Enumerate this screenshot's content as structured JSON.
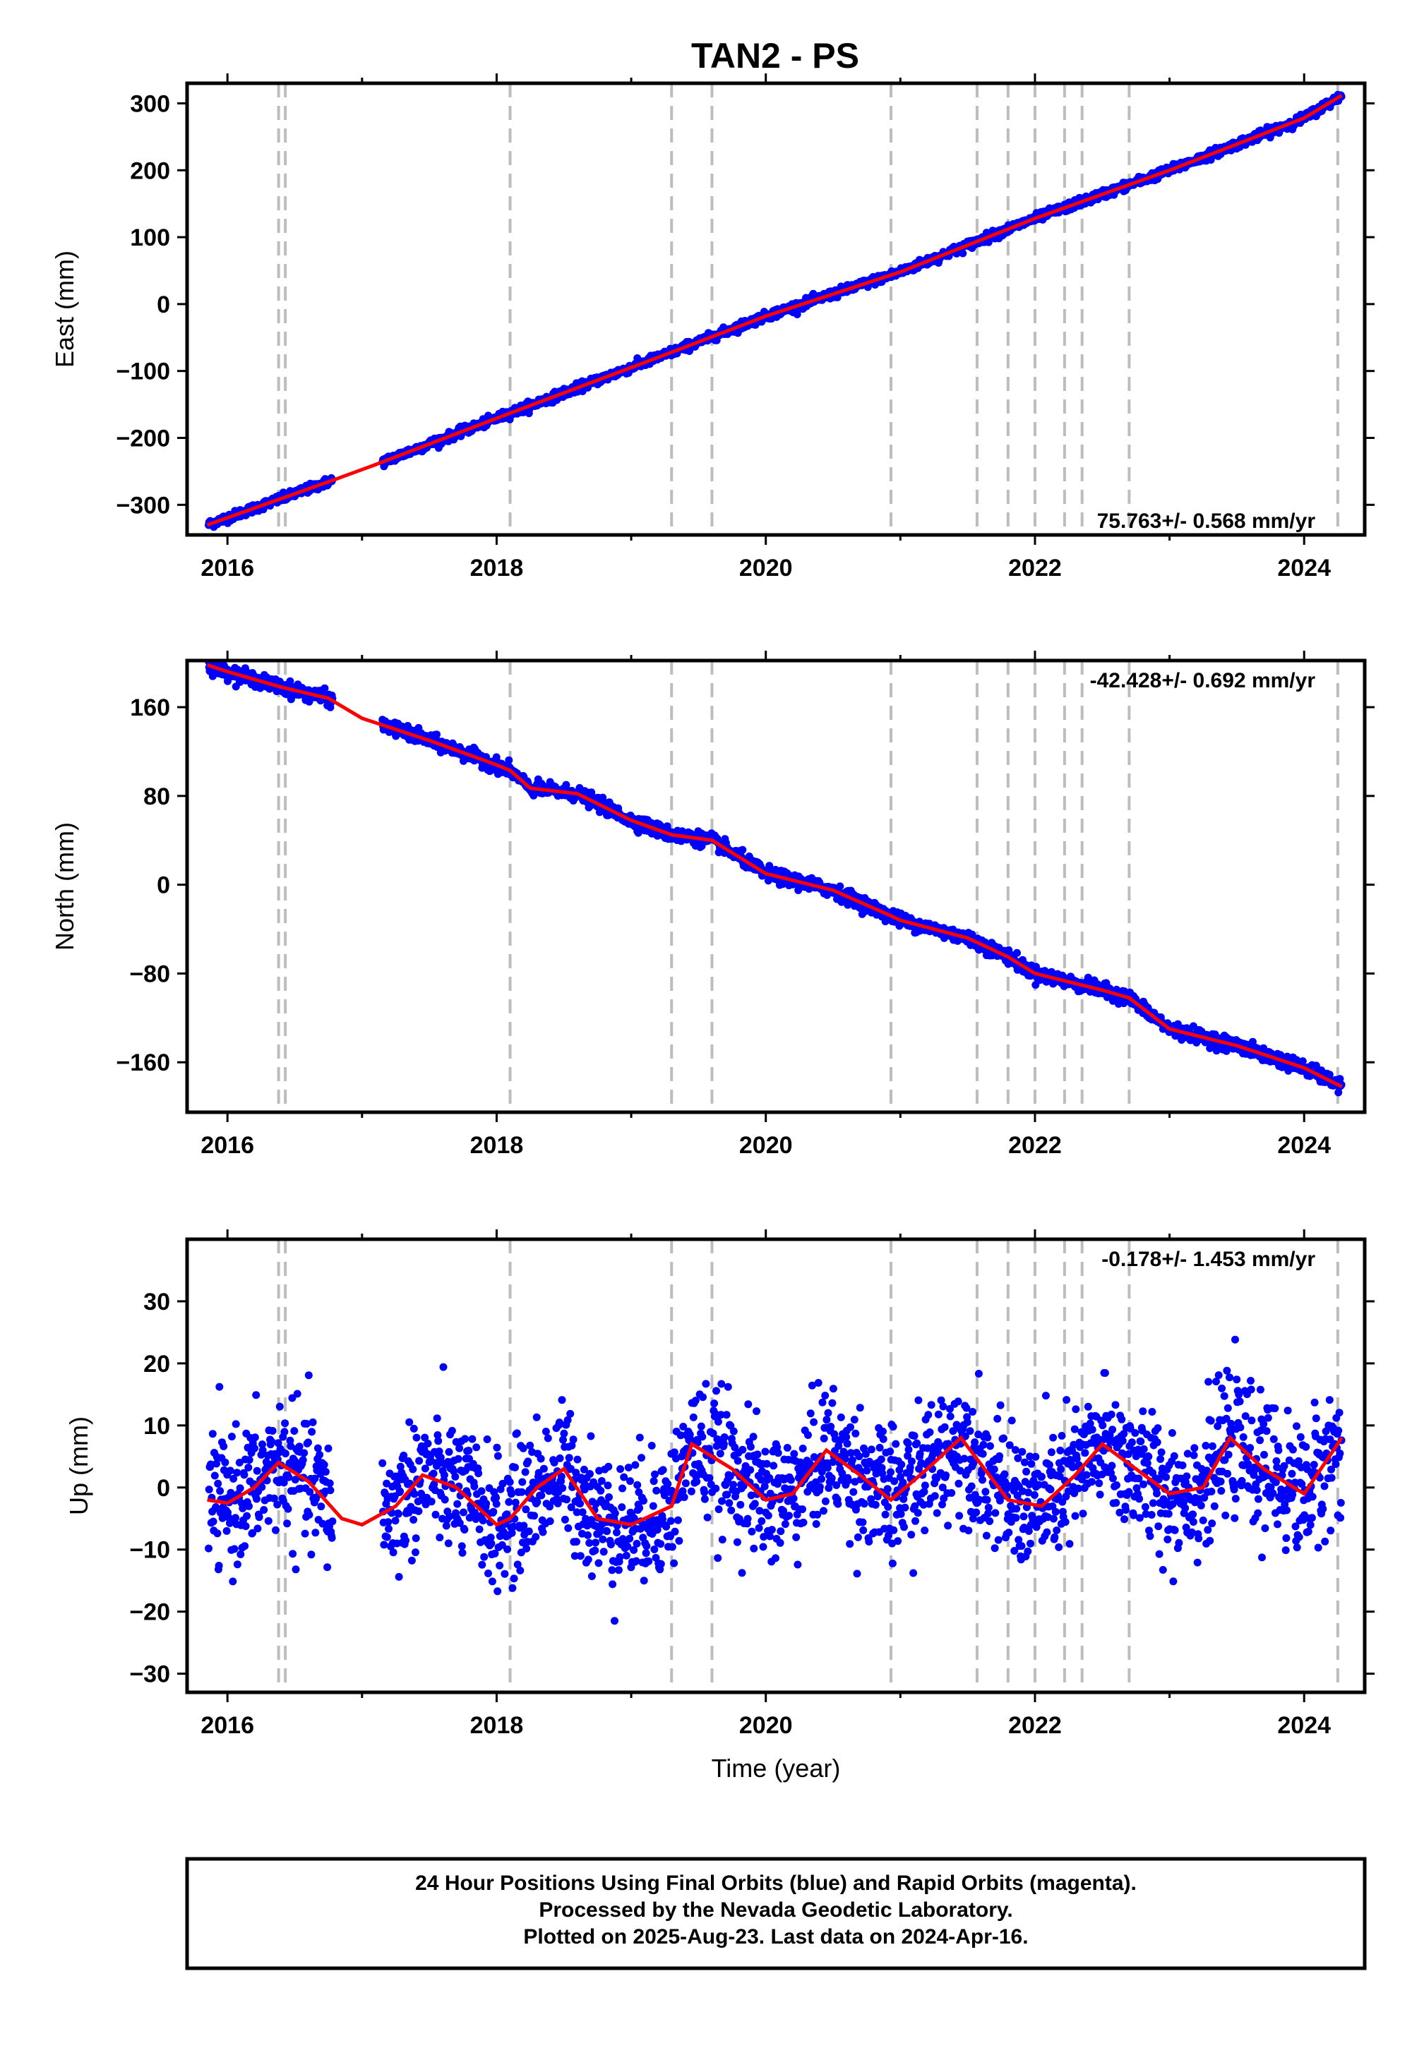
{
  "title": "TAN2 - PS",
  "chart_data": [
    {
      "type": "scatter",
      "panel": "east",
      "ylabel": "East (mm)",
      "xlabel": "",
      "xlim": [
        2015.7,
        2024.45
      ],
      "ylim": [
        -345,
        330
      ],
      "yticks": [
        300,
        200,
        100,
        0,
        -100,
        -200,
        -300
      ],
      "ytick_labels": [
        "300",
        "200",
        "100",
        "0",
        "−100",
        "−200",
        "−300"
      ],
      "xticks": [
        2016,
        2018,
        2020,
        2022,
        2024
      ],
      "xtick_labels": [
        "2016",
        "2018",
        "2020",
        "2022",
        "2024"
      ],
      "rate_label": "75.763+/- 0.568 mm/yr",
      "series": [
        {
          "color": "#0000ff",
          "kind": "points",
          "trend": {
            "t0": 2015.85,
            "y0": -330,
            "t1": 2024.28,
            "y1": 312
          }
        },
        {
          "color": "#ff0000",
          "kind": "model",
          "x": [
            2015.85,
            2016.8,
            2017.1,
            2018.1,
            2019.3,
            2020.0,
            2021.0,
            2022.0,
            2023.0,
            2024.0,
            2024.28
          ],
          "values": [
            -330,
            -262,
            -240,
            -163,
            -72,
            -18,
            48,
            128,
            200,
            278,
            312
          ]
        }
      ]
    },
    {
      "type": "scatter",
      "panel": "north",
      "ylabel": "North (mm)",
      "xlabel": "",
      "xlim": [
        2015.7,
        2024.45
      ],
      "ylim": [
        -205,
        202
      ],
      "yticks": [
        160,
        80,
        0,
        -80,
        -160
      ],
      "ytick_labels": [
        "160",
        "80",
        "0",
        "−80",
        "−160"
      ],
      "xticks": [
        2016,
        2018,
        2020,
        2022,
        2024
      ],
      "xtick_labels": [
        "2016",
        "2018",
        "2020",
        "2022",
        "2024"
      ],
      "rate_label": "-42.428+/- 0.692 mm/yr",
      "series": [
        {
          "color": "#0000ff",
          "kind": "points",
          "trend": {
            "t0": 2015.85,
            "y0": 198,
            "t1": 2024.28,
            "y1": -178
          }
        },
        {
          "color": "#ff0000",
          "kind": "model",
          "x": [
            2015.85,
            2016.0,
            2016.4,
            2016.75,
            2017.0,
            2017.5,
            2018.0,
            2018.1,
            2018.25,
            2018.6,
            2019.0,
            2019.3,
            2019.6,
            2020.0,
            2020.5,
            2020.93,
            2021.0,
            2021.5,
            2021.8,
            2022.0,
            2022.5,
            2022.7,
            2023.0,
            2023.5,
            2024.0,
            2024.28
          ],
          "values": [
            198,
            192,
            178,
            168,
            150,
            130,
            108,
            103,
            87,
            82,
            58,
            45,
            40,
            10,
            -5,
            -28,
            -32,
            -48,
            -65,
            -80,
            -95,
            -102,
            -130,
            -145,
            -165,
            -182
          ]
        }
      ]
    },
    {
      "type": "scatter",
      "panel": "up",
      "ylabel": "Up (mm)",
      "xlabel": "Time (year)",
      "xlim": [
        2015.7,
        2024.45
      ],
      "ylim": [
        -33,
        40
      ],
      "yticks": [
        30,
        20,
        10,
        0,
        -10,
        -20,
        -30
      ],
      "ytick_labels": [
        "30",
        "20",
        "10",
        "0",
        "−10",
        "−20",
        "−30"
      ],
      "xticks": [
        2016,
        2018,
        2020,
        2022,
        2024
      ],
      "xtick_labels": [
        "2016",
        "2018",
        "2020",
        "2022",
        "2024"
      ],
      "rate_label": "-0.178+/- 1.453 mm/yr",
      "series": [
        {
          "color": "#0000ff",
          "kind": "points",
          "trend": {
            "t0": 2015.85,
            "y0": 0,
            "t1": 2024.28,
            "y1": 0
          }
        },
        {
          "color": "#ff0000",
          "kind": "model",
          "x": [
            2015.85,
            2016.0,
            2016.2,
            2016.38,
            2016.6,
            2016.85,
            2017.0,
            2017.25,
            2017.45,
            2017.7,
            2018.0,
            2018.1,
            2018.3,
            2018.5,
            2018.75,
            2019.0,
            2019.3,
            2019.45,
            2019.75,
            2020.0,
            2020.2,
            2020.45,
            2020.7,
            2020.93,
            2021.2,
            2021.45,
            2021.8,
            2022.05,
            2022.3,
            2022.5,
            2022.75,
            2023.0,
            2023.25,
            2023.45,
            2023.7,
            2024.0,
            2024.28
          ],
          "values": [
            -2,
            -2.5,
            0,
            4,
            1,
            -5,
            -6,
            -3,
            2,
            0,
            -6,
            -5,
            0,
            3,
            -5,
            -6,
            -3,
            7,
            3,
            -2,
            -1,
            6,
            2,
            -2,
            3,
            8,
            -2,
            -3,
            2,
            7,
            3,
            -1,
            0,
            8,
            3,
            -1,
            8
          ]
        }
      ]
    }
  ],
  "event_lines": [
    2016.38,
    2016.43,
    2018.1,
    2019.3,
    2019.6,
    2020.93,
    2021.57,
    2021.8,
    2022.0,
    2022.22,
    2022.35,
    2022.7,
    2024.25
  ],
  "footer": {
    "line1": "24 Hour Positions Using Final Orbits (blue) and Rapid Orbits (magenta).",
    "line2": "Processed by the Nevada Geodetic Laboratory.",
    "line3": "Plotted on 2025-Aug-23. Last data on 2024-Apr-16."
  }
}
